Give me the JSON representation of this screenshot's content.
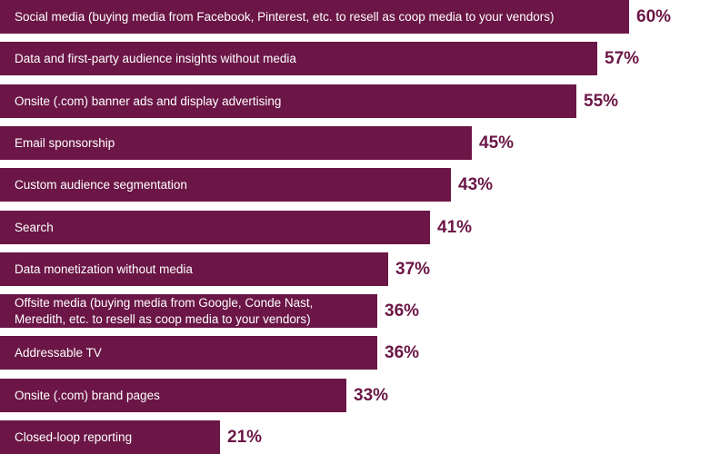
{
  "chart_data": {
    "type": "bar",
    "orientation": "horizontal",
    "title": "",
    "xlabel": "",
    "ylabel": "",
    "value_suffix": "%",
    "xlim": [
      0,
      60
    ],
    "grid": false,
    "legend": "none",
    "colors": {
      "bar": "#6b1646",
      "bar_text": "#ffffff",
      "value_text": "#6b1646"
    },
    "categories": [
      "Social media (buying media from Facebook, Pinterest, etc. to resell as coop media to your vendors)",
      "Data and first-party audience insights without media",
      "Onsite (.com) banner ads and display advertising",
      "Email sponsorship",
      "Custom audience segmentation",
      "Search",
      "Data monetization without media",
      "Offsite media (buying media from Google, Conde Nast,\nMeredith, etc. to resell as coop media to your vendors)",
      "Addressable TV",
      "Onsite (.com) brand pages",
      "Closed-loop reporting"
    ],
    "values": [
      60,
      57,
      55,
      45,
      43,
      41,
      37,
      36,
      36,
      33,
      21
    ],
    "value_labels": [
      "60%",
      "57%",
      "55%",
      "45%",
      "43%",
      "41%",
      "37%",
      "36%",
      "36%",
      "33%",
      "21%"
    ]
  }
}
